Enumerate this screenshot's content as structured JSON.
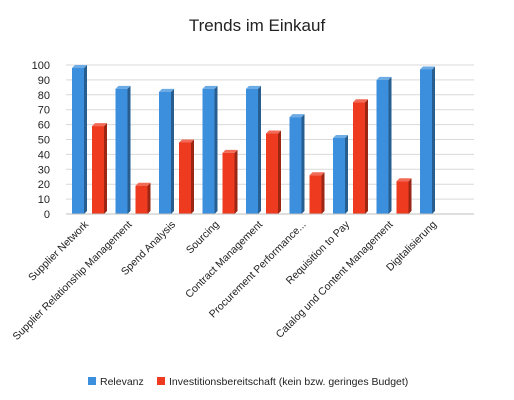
{
  "chart_data": {
    "type": "bar",
    "title": "Trends im Einkauf",
    "xlabel": "",
    "ylabel": "",
    "ylim": [
      0,
      100
    ],
    "yticks": [
      0,
      10,
      20,
      30,
      40,
      50,
      60,
      70,
      80,
      90,
      100
    ],
    "grid": true,
    "legend_position": "bottom",
    "categories": [
      "Supplier Network",
      "Supplier Relationship Management",
      "Spend Analysis",
      "Sourcing",
      "Contract Management",
      "Procurement Performance...",
      "Requisition to Pay",
      "Catalog und Content Management",
      "Digitalisierung"
    ],
    "series": [
      {
        "name": "Relevanz",
        "color": "#3c8fdc",
        "values": [
          98,
          84,
          82,
          84,
          84,
          65,
          51,
          90,
          97
        ]
      },
      {
        "name": "Investitionsbereitschaft (kein bzw. geringes Budget)",
        "color": "#ee3a1f",
        "values": [
          59,
          19,
          48,
          41,
          54,
          26,
          75,
          22,
          null
        ]
      }
    ]
  }
}
